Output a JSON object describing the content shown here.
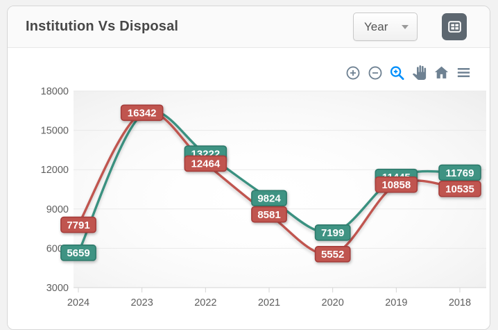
{
  "page": {
    "background": "#f2f2f2"
  },
  "header": {
    "title": "Institution Vs Disposal",
    "dropdown": {
      "value": "Year"
    },
    "grid_button_color": "#5d6770"
  },
  "toolbar": {
    "icon_color": "#6E8192",
    "active_color": "#008FFB",
    "icons": [
      "zoom-in-icon",
      "zoom-out-icon",
      "selection-zoom-icon",
      "pan-icon",
      "home-icon",
      "menu-icon"
    ],
    "active_icon": "selection-zoom-icon"
  },
  "chart_data": {
    "type": "line",
    "title": "Institution Vs Disposal",
    "categories": [
      "2024",
      "2023",
      "2022",
      "2021",
      "2020",
      "2019",
      "2018"
    ],
    "series": [
      {
        "name": "Institution",
        "color": "#3A9180",
        "label_bg": "#3F9383",
        "label_border": "#2D7A6B",
        "values": [
          5659,
          16200,
          13222,
          9824,
          7199,
          11445,
          11769
        ],
        "label_visible": [
          true,
          false,
          true,
          true,
          true,
          true,
          true
        ]
      },
      {
        "name": "Disposal",
        "color": "#C0554F",
        "label_bg": "#C0554F",
        "label_border": "#A63D3B",
        "values": [
          7791,
          16342,
          12464,
          8581,
          5552,
          10858,
          10535
        ],
        "label_visible": [
          true,
          true,
          true,
          true,
          true,
          true,
          true
        ]
      }
    ],
    "yticks": [
      18000,
      15000,
      12000,
      9000,
      6000,
      3000
    ],
    "ylim": [
      3000,
      18000
    ],
    "grid": true,
    "legend": "none",
    "notes": "teal 2023 point label hidden behind red 16342 label; value estimated from line position"
  }
}
